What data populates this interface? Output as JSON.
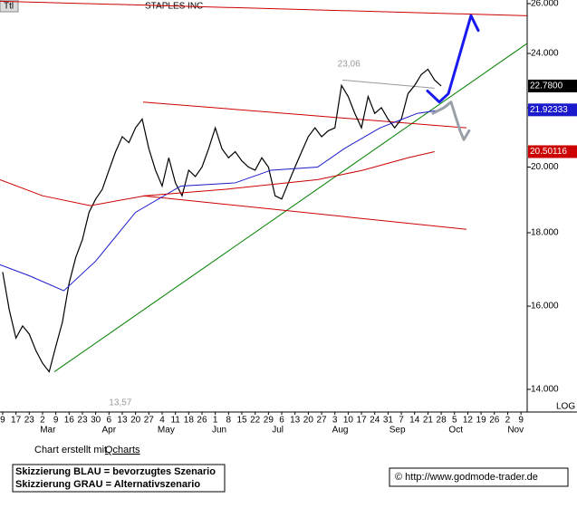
{
  "header": {
    "tag": "Ttl",
    "title": "STAPLES INC"
  },
  "chart_data": {
    "type": "line",
    "log_scale": true,
    "xlim": [
      -0.2,
      39.47
    ],
    "ylim": [
      13.5,
      26.15
    ],
    "yticks": [
      {
        "value": 26,
        "label": "26.000"
      },
      {
        "value": 24,
        "label": "24.000"
      },
      {
        "value": 22,
        "label": "22.000"
      },
      {
        "value": 20,
        "label": "20.000"
      },
      {
        "value": 18,
        "label": "18.000"
      },
      {
        "value": 16,
        "label": "16.000"
      },
      {
        "value": 14,
        "label": "14.000"
      }
    ],
    "xticks": [
      {
        "value": 0,
        "label": "9"
      },
      {
        "value": 1,
        "label": "17"
      },
      {
        "value": 2,
        "label": "23"
      },
      {
        "value": 3,
        "label": "2"
      },
      {
        "value": 4,
        "label": "9"
      },
      {
        "value": 5,
        "label": "16"
      },
      {
        "value": 6,
        "label": "23"
      },
      {
        "value": 7,
        "label": "30"
      },
      {
        "value": 8,
        "label": "6"
      },
      {
        "value": 9,
        "label": "13"
      },
      {
        "value": 10,
        "label": "20"
      },
      {
        "value": 11,
        "label": "27"
      },
      {
        "value": 12,
        "label": "4"
      },
      {
        "value": 13,
        "label": "11"
      },
      {
        "value": 14,
        "label": "18"
      },
      {
        "value": 15,
        "label": "26"
      },
      {
        "value": 16,
        "label": "1"
      },
      {
        "value": 17,
        "label": "8"
      },
      {
        "value": 18,
        "label": "15"
      },
      {
        "value": 19,
        "label": "22"
      },
      {
        "value": 20,
        "label": "29"
      },
      {
        "value": 21,
        "label": "6"
      },
      {
        "value": 22,
        "label": "13"
      },
      {
        "value": 23,
        "label": "20"
      },
      {
        "value": 24,
        "label": "27"
      },
      {
        "value": 25,
        "label": "3"
      },
      {
        "value": 26,
        "label": "10"
      },
      {
        "value": 27,
        "label": "17"
      },
      {
        "value": 28,
        "label": "24"
      },
      {
        "value": 29,
        "label": "31"
      },
      {
        "value": 30,
        "label": "7"
      },
      {
        "value": 31,
        "label": "14"
      },
      {
        "value": 32,
        "label": "21"
      },
      {
        "value": 33,
        "label": "28"
      },
      {
        "value": 34,
        "label": "5"
      },
      {
        "value": 35,
        "label": "12"
      },
      {
        "value": 36,
        "label": "19"
      },
      {
        "value": 37,
        "label": "26"
      },
      {
        "value": 38,
        "label": "2"
      },
      {
        "value": 39,
        "label": "9"
      }
    ],
    "months": [
      {
        "value": 3.4,
        "label": "Mar"
      },
      {
        "value": 8.0,
        "label": "Apr"
      },
      {
        "value": 12.3,
        "label": "May"
      },
      {
        "value": 16.3,
        "label": "Jun"
      },
      {
        "value": 20.7,
        "label": "Jul"
      },
      {
        "value": 25.4,
        "label": "Aug"
      },
      {
        "value": 29.7,
        "label": "Sep"
      },
      {
        "value": 34.1,
        "label": "Oct"
      },
      {
        "value": 38.6,
        "label": "Nov"
      }
    ],
    "scale_label": "LOG",
    "series": [
      {
        "color": "#000000",
        "width": 1.2,
        "last_label": "22.7800",
        "x": [
          0,
          0.5,
          1,
          1.5,
          2,
          2.5,
          3,
          3.5,
          4,
          4.5,
          5,
          5.5,
          6,
          6.5,
          7,
          7.5,
          8,
          8.5,
          9,
          9.5,
          10,
          10.5,
          11,
          11.5,
          12,
          12.5,
          13,
          13.5,
          14,
          14.5,
          15,
          15.5,
          16,
          16.5,
          17,
          17.5,
          18,
          18.5,
          19,
          19.5,
          20,
          20.5,
          21,
          21.5,
          22,
          22.5,
          23,
          23.5,
          24,
          24.5,
          25,
          25.5,
          26,
          26.5,
          27,
          27.5,
          28,
          28.5,
          29,
          29.5,
          30,
          30.5,
          31,
          31.5,
          32,
          32.5,
          33
        ],
        "values": [
          16.9,
          15.9,
          15.2,
          15.5,
          15.3,
          14.9,
          14.6,
          14.4,
          15.0,
          15.6,
          16.6,
          17.3,
          17.8,
          18.6,
          19.0,
          19.3,
          19.9,
          20.5,
          21.0,
          20.8,
          21.3,
          21.6,
          20.6,
          19.9,
          19.4,
          20.3,
          19.5,
          19.1,
          19.9,
          19.7,
          20.0,
          20.6,
          21.3,
          20.6,
          20.3,
          20.5,
          20.2,
          20.0,
          19.9,
          20.3,
          20.0,
          19.1,
          19.0,
          19.5,
          20.0,
          20.5,
          21.0,
          21.3,
          21.0,
          21.2,
          21.3,
          22.8,
          22.4,
          21.8,
          21.3,
          22.4,
          21.8,
          22.0,
          21.6,
          21.3,
          21.6,
          22.5,
          22.8,
          23.2,
          23.4,
          23.0,
          22.78
        ]
      },
      {
        "color": "#1a1acc",
        "width": 1,
        "last_label": "21.92333",
        "x": [
          -0.2,
          2,
          4.6,
          7,
          10,
          13.4,
          17.5,
          20.2,
          23.7,
          25.7,
          28.4,
          31.2,
          33
        ],
        "values": [
          17.1,
          16.8,
          16.4,
          17.2,
          18.6,
          19.4,
          19.5,
          19.9,
          20.0,
          20.6,
          21.3,
          21.8,
          21.92333
        ]
      },
      {
        "color": "#cc0000",
        "width": 1,
        "last_label": "20.50116",
        "x": [
          -0.2,
          3,
          6.6,
          10.7,
          16.8,
          23.7,
          27.1,
          30.5,
          32.5
        ],
        "values": [
          19.6,
          19.1,
          18.8,
          19.1,
          19.3,
          19.6,
          19.9,
          20.3,
          20.50116
        ]
      }
    ],
    "trendlines": [
      {
        "color": "#008000",
        "x": [
          3.89,
          39.47
        ],
        "values": [
          14.4,
          24.39
        ]
      },
      {
        "color": "#cc0000",
        "x": [
          10.57,
          34.9
        ],
        "values": [
          22.2,
          21.3
        ]
      },
      {
        "color": "#cc0000",
        "x": [
          10.57,
          34.9
        ],
        "values": [
          19.1,
          18.1
        ]
      },
      {
        "color": "#cc0000",
        "x": [
          -0.2,
          39.47
        ],
        "values": [
          26.1,
          25.5
        ]
      },
      {
        "color": "#999999",
        "x": [
          25.56,
          32.5
        ],
        "values": [
          23.0,
          22.7
        ]
      }
    ],
    "scenarios": [
      {
        "color": "#1a1aee",
        "x": [
          31.97,
          32.86,
          33.54,
          35.24,
          35.79
        ],
        "values": [
          22.6,
          22.2,
          22.5,
          25.5,
          24.9
        ]
      },
      {
        "color": "#9aa0a8",
        "x": [
          32.38,
          33.2,
          33.74,
          34.42,
          34.7,
          35.1
        ],
        "values": [
          21.8,
          22.0,
          22.2,
          21.2,
          20.9,
          21.2
        ]
      }
    ],
    "annotations": [
      {
        "text": "23,06",
        "x": 25.2,
        "y": 23.6
      },
      {
        "text": "13,57",
        "x": 8.0,
        "y": 13.7
      }
    ]
  },
  "footer": {
    "credit": "Chart erstellt mit ",
    "credit_link": "Qcharts",
    "legend": [
      "Skizzierung BLAU = bevorzugtes Szenario",
      "Skizzierung GRAU = Alternativszenario"
    ],
    "copyright": "© http://www.godmode-trader.de"
  }
}
